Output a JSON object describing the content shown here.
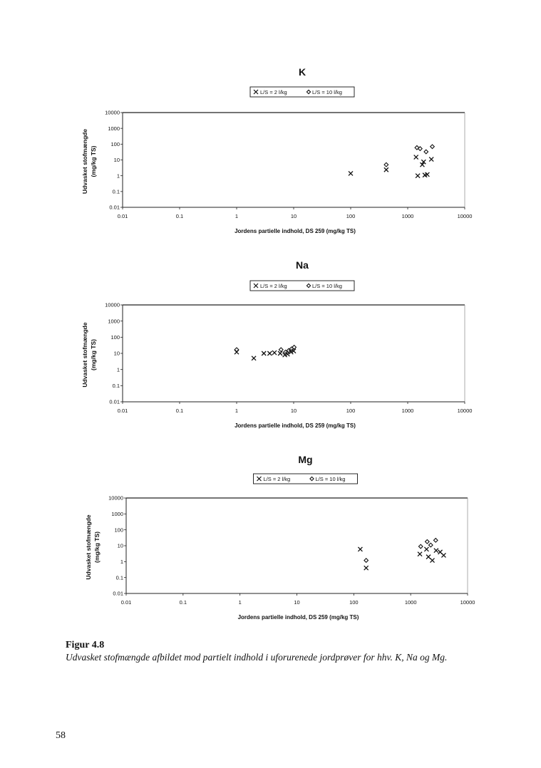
{
  "chart_data": [
    {
      "type": "scatter",
      "title": "K",
      "xlabel": "Jordens partielle indhold, DS 259 (mg/kg TS)",
      "ylabel": [
        "Udvasket stofmængde",
        "(mg/kg TS)"
      ],
      "xscale": "log",
      "yscale": "log",
      "xlim": [
        0.01,
        10000
      ],
      "ylim": [
        0.01,
        10000
      ],
      "xticks": [
        "0.01",
        "0.1",
        "1",
        "10",
        "100",
        "1000",
        "10000"
      ],
      "yticks": [
        "0.01",
        "0.1",
        "1",
        "10",
        "100",
        "1000",
        "10000"
      ],
      "legend": {
        "placement": "top-center",
        "entries": [
          "L/S = 2 l/kg",
          "L/S = 10 l/kg"
        ]
      },
      "series": [
        {
          "name": "L/S = 2 l/kg",
          "marker": "x",
          "points": [
            [
              100,
              1.4
            ],
            [
              420,
              2.4
            ],
            [
              1400,
              15
            ],
            [
              1900,
              7.5
            ],
            [
              2000,
              1.1
            ],
            [
              2600,
              11
            ],
            [
              2200,
              1.2
            ],
            [
              1500,
              1.0
            ],
            [
              1800,
              5.0
            ]
          ]
        },
        {
          "name": "L/S = 10 l/kg",
          "marker": "diamond",
          "points": [
            [
              420,
              5
            ],
            [
              1450,
              60
            ],
            [
              1650,
              52
            ],
            [
              2100,
              33
            ],
            [
              2700,
              70
            ]
          ]
        }
      ]
    },
    {
      "type": "scatter",
      "title": "Na",
      "xlabel": "Jordens partielle indhold, DS 259 (mg/kg TS)",
      "ylabel": [
        "Udvasket stofmængde",
        "(mg/kg TS)"
      ],
      "xscale": "log",
      "yscale": "log",
      "xlim": [
        0.01,
        10000
      ],
      "ylim": [
        0.01,
        10000
      ],
      "xticks": [
        "0.01",
        "0.1",
        "1",
        "10",
        "100",
        "1000",
        "10000"
      ],
      "yticks": [
        "0.01",
        "0.1",
        "1",
        "10",
        "100",
        "1000",
        "10000"
      ],
      "legend": {
        "placement": "top-center",
        "entries": [
          "L/S = 2 l/kg",
          "L/S = 10 l/kg"
        ]
      },
      "series": [
        {
          "name": "L/S = 2 l/kg",
          "marker": "x",
          "points": [
            [
              1.0,
              12
            ],
            [
              2.0,
              5
            ],
            [
              3.0,
              10
            ],
            [
              3.8,
              10
            ],
            [
              4.6,
              11
            ],
            [
              5.8,
              10
            ],
            [
              7.0,
              8
            ],
            [
              7.8,
              9
            ],
            [
              9.0,
              12
            ],
            [
              10.0,
              14
            ]
          ]
        },
        {
          "name": "L/S = 10 l/kg",
          "marker": "diamond",
          "points": [
            [
              1.0,
              17
            ],
            [
              6.0,
              17
            ],
            [
              7.2,
              12
            ],
            [
              8.2,
              15
            ],
            [
              9.2,
              19
            ],
            [
              10.2,
              24
            ]
          ]
        }
      ]
    },
    {
      "type": "scatter",
      "title": "Mg",
      "xlabel": "Jordens partielle indhold, DS 259 (mg/kg TS)",
      "ylabel": [
        "Udvasket stofmængde",
        "(mg/kg TS)"
      ],
      "xscale": "log",
      "yscale": "log",
      "xlim": [
        0.01,
        10000
      ],
      "ylim": [
        0.01,
        10000
      ],
      "xticks": [
        "0.01",
        "0.1",
        "1",
        "10",
        "100",
        "1000",
        "10000"
      ],
      "yticks": [
        "0.01",
        "0.1",
        "1",
        "10",
        "100",
        "1000",
        "10000"
      ],
      "legend": {
        "placement": "top-center",
        "entries": [
          "L/S = 2 l/kg",
          "L/S = 10 l/kg"
        ]
      },
      "series": [
        {
          "name": "L/S = 2 l/kg",
          "marker": "x",
          "points": [
            [
              130,
              6
            ],
            [
              165,
              0.4
            ],
            [
              1450,
              3
            ],
            [
              1900,
              6
            ],
            [
              2050,
              2
            ],
            [
              2800,
              5
            ],
            [
              3300,
              4
            ],
            [
              2400,
              1.2
            ],
            [
              3800,
              2.5
            ]
          ]
        },
        {
          "name": "L/S = 10 l/kg",
          "marker": "diamond",
          "points": [
            [
              165,
              1.2
            ],
            [
              1500,
              9
            ],
            [
              1950,
              18
            ],
            [
              2250,
              11
            ],
            [
              2750,
              22
            ]
          ]
        }
      ]
    }
  ],
  "caption": {
    "title": "Figur 4.8",
    "text": "Udvasket stofmængde afbildet mod partielt indhold i uforurenede jordprøver for hhv. K, Na og Mg."
  },
  "page_number": "58"
}
